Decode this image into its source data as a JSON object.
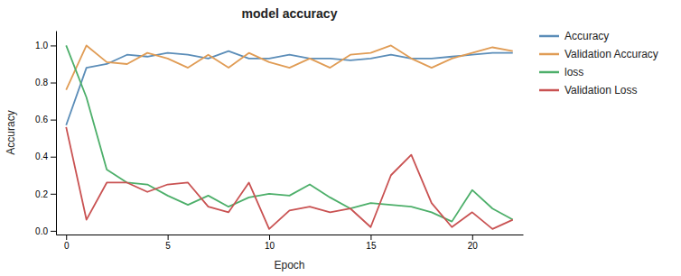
{
  "chart_data": {
    "type": "line",
    "title": "model accuracy",
    "xlabel": "Epoch",
    "ylabel": "Accuracy",
    "x": [
      0,
      1,
      2,
      3,
      4,
      5,
      6,
      7,
      8,
      9,
      10,
      11,
      12,
      13,
      14,
      15,
      16,
      17,
      18,
      19,
      20,
      21,
      22
    ],
    "series": [
      {
        "name": "Accuracy",
        "color": "#5B8DB8",
        "values": [
          0.57,
          0.88,
          0.9,
          0.95,
          0.94,
          0.96,
          0.95,
          0.93,
          0.97,
          0.93,
          0.93,
          0.95,
          0.93,
          0.93,
          0.92,
          0.93,
          0.95,
          0.93,
          0.93,
          0.94,
          0.95,
          0.96,
          0.96
        ]
      },
      {
        "name": "Validation Accuracy",
        "color": "#E09C55",
        "values": [
          0.76,
          1.0,
          0.91,
          0.9,
          0.96,
          0.93,
          0.88,
          0.95,
          0.88,
          0.96,
          0.91,
          0.88,
          0.93,
          0.88,
          0.95,
          0.96,
          1.0,
          0.93,
          0.88,
          0.93,
          0.96,
          0.99,
          0.97
        ]
      },
      {
        "name": "loss",
        "color": "#4DAF6A",
        "values": [
          1.0,
          0.72,
          0.33,
          0.26,
          0.25,
          0.19,
          0.14,
          0.19,
          0.13,
          0.18,
          0.2,
          0.19,
          0.25,
          0.18,
          0.12,
          0.15,
          0.14,
          0.13,
          0.1,
          0.05,
          0.22,
          0.12,
          0.06
        ]
      },
      {
        "name": "Validation Loss",
        "color": "#C95252",
        "values": [
          0.56,
          0.06,
          0.26,
          0.26,
          0.21,
          0.25,
          0.26,
          0.13,
          0.1,
          0.26,
          0.01,
          0.11,
          0.13,
          0.1,
          0.12,
          0.02,
          0.3,
          0.41,
          0.15,
          0.02,
          0.1,
          0.01,
          0.06
        ]
      }
    ],
    "xlim": [
      -0.5,
      22.5
    ],
    "ylim": [
      -0.02,
      1.08
    ],
    "xticks": [
      0,
      5,
      10,
      15,
      20
    ],
    "yticks": [
      {
        "value": 0,
        "label": "0.0"
      },
      0.2,
      0.4,
      0.6,
      0.8,
      {
        "value": 1,
        "label": "1.0"
      }
    ],
    "grid": false,
    "legend": "right"
  }
}
